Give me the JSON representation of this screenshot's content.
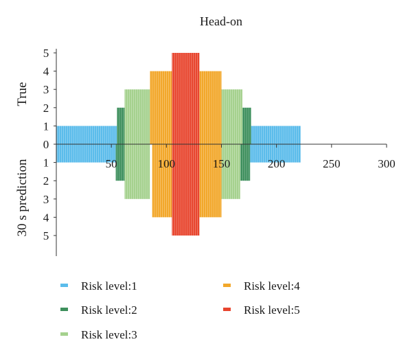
{
  "chart_data": {
    "type": "bar",
    "title": "Head-on",
    "ylabel_top": "True",
    "ylabel_bottom": "30 s prediction",
    "xlim": [
      0,
      300
    ],
    "x_ticks": [
      "50",
      "100",
      "150",
      "200",
      "250",
      "300"
    ],
    "x_tick_values": [
      50,
      100,
      150,
      200,
      250,
      300
    ],
    "y_ticks_top": [
      "0",
      "1",
      "2",
      "3",
      "4",
      "5"
    ],
    "y_ticks_bottom": [
      "1",
      "2",
      "3",
      "4",
      "5"
    ],
    "ylim_top": [
      0,
      5
    ],
    "ylim_bottom": [
      0,
      5
    ],
    "grid": false,
    "legend_position": "bottom",
    "series": [
      {
        "name": "Risk level:1",
        "level": 1,
        "color": "#5BBCEB",
        "true_ranges": [
          [
            0,
            55
          ],
          [
            176,
            222
          ]
        ],
        "pred_ranges": [
          [
            0,
            54
          ],
          [
            175,
            222
          ]
        ]
      },
      {
        "name": "Risk level:2",
        "level": 2,
        "color": "#3D8F5C",
        "true_ranges": [
          [
            55,
            62
          ],
          [
            169,
            177
          ]
        ],
        "pred_ranges": [
          [
            54,
            62
          ],
          [
            167,
            176
          ]
        ]
      },
      {
        "name": "Risk level:3",
        "level": 3,
        "color": "#A5D18E",
        "true_ranges": [
          [
            62,
            85
          ],
          [
            150,
            169
          ]
        ],
        "pred_ranges": [
          [
            62,
            85
          ],
          [
            150,
            167
          ]
        ]
      },
      {
        "name": "Risk level:4",
        "level": 4,
        "color": "#F2A72A",
        "true_ranges": [
          [
            85,
            105
          ],
          [
            130,
            150
          ]
        ],
        "pred_ranges": [
          [
            87,
            105
          ],
          [
            130,
            150
          ]
        ]
      },
      {
        "name": "Risk level:5",
        "level": 5,
        "color": "#E8452E",
        "true_ranges": [
          [
            105,
            130
          ]
        ],
        "pred_ranges": [
          [
            105,
            130
          ]
        ]
      }
    ],
    "legend_entries": [
      "Risk level:1",
      "Risk level:4",
      "Risk level:2",
      "Risk level:5",
      "Risk level:3"
    ]
  }
}
